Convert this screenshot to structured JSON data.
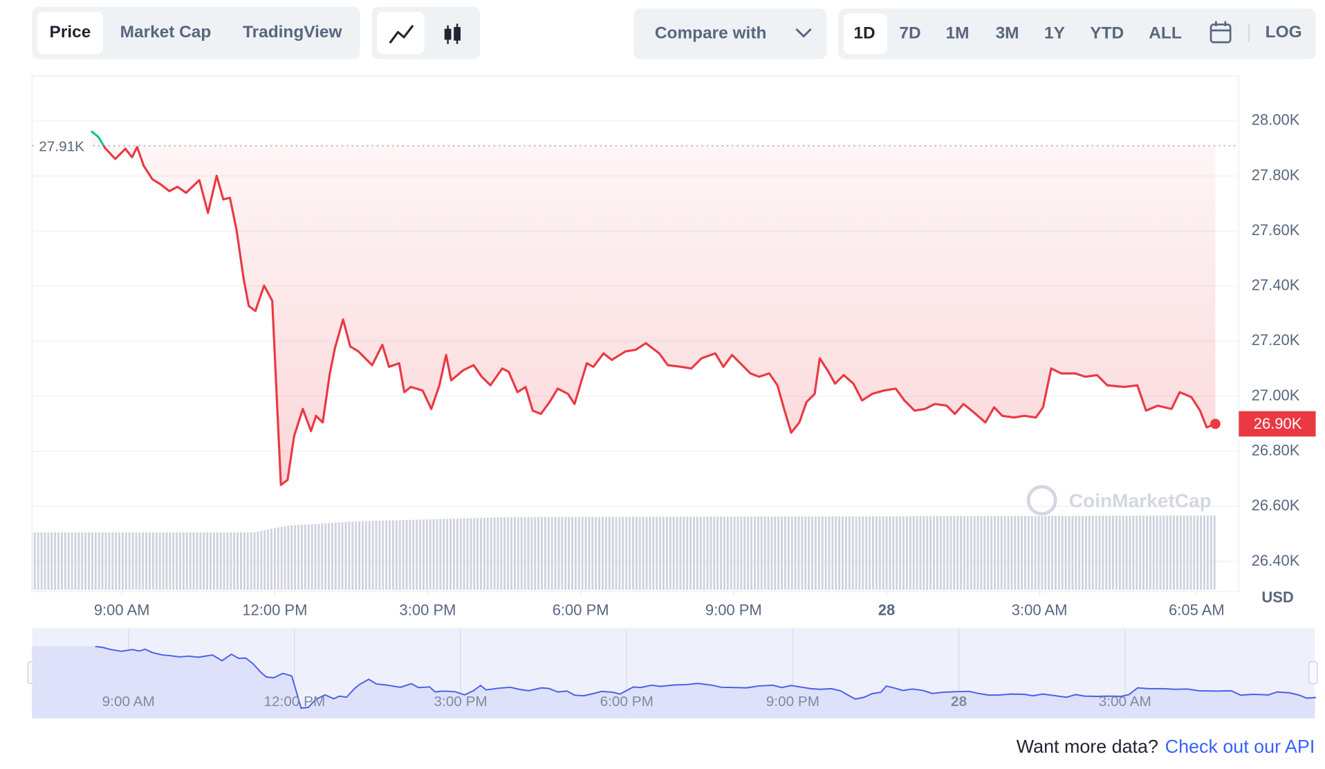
{
  "toolbar": {
    "tabs": [
      "Price",
      "Market Cap",
      "TradingView"
    ],
    "compare": "Compare with",
    "ranges": [
      "1D",
      "7D",
      "1M",
      "3M",
      "1Y",
      "YTD",
      "ALL"
    ],
    "log": "LOG"
  },
  "chart_data": {
    "type": "line",
    "color": "#ea3943",
    "up_color": "#16c784",
    "x": [
      8.4,
      8.54,
      8.67,
      8.87,
      9.07,
      9.2,
      9.3,
      9.43,
      9.6,
      9.76,
      9.93,
      10.09,
      10.26,
      10.52,
      10.69,
      10.86,
      10.99,
      11.12,
      11.25,
      11.39,
      11.49,
      11.62,
      11.79,
      11.95,
      12.12,
      12.25,
      12.38,
      12.55,
      12.71,
      12.81,
      12.94,
      13.08,
      13.18,
      13.34,
      13.48,
      13.64,
      13.91,
      14.11,
      14.24,
      14.44,
      14.54,
      14.67,
      14.9,
      15.07,
      15.23,
      15.36,
      15.46,
      15.7,
      15.9,
      16.06,
      16.23,
      16.46,
      16.59,
      16.76,
      16.92,
      17.06,
      17.22,
      17.39,
      17.55,
      17.75,
      17.88,
      18.12,
      18.25,
      18.45,
      18.61,
      18.88,
      19.08,
      19.28,
      19.54,
      19.71,
      19.97,
      20.17,
      20.37,
      20.64,
      20.8,
      20.97,
      21.17,
      21.33,
      21.5,
      21.7,
      21.86,
      22.0,
      22.13,
      22.29,
      22.43,
      22.59,
      22.69,
      22.86,
      22.99,
      23.16,
      23.35,
      23.52,
      23.72,
      23.95,
      24.18,
      24.35,
      24.55,
      24.75,
      24.95,
      25.18,
      25.34,
      25.51,
      25.71,
      25.94,
      26.11,
      26.27,
      26.5,
      26.7,
      26.93,
      27.07,
      27.23,
      27.43,
      27.7,
      27.9,
      28.13,
      28.33,
      28.66,
      28.92,
      29.09,
      29.32,
      29.59,
      29.75,
      29.98,
      30.15,
      30.28,
      30.45
    ],
    "values": [
      27963,
      27942,
      27902,
      27862,
      27899,
      27868,
      27905,
      27837,
      27788,
      27770,
      27745,
      27761,
      27739,
      27785,
      27666,
      27801,
      27715,
      27721,
      27604,
      27426,
      27328,
      27310,
      27402,
      27347,
      26678,
      26696,
      26856,
      26954,
      26874,
      26929,
      26905,
      27083,
      27175,
      27279,
      27181,
      27163,
      27113,
      27187,
      27107,
      27120,
      27015,
      27034,
      27021,
      26954,
      27040,
      27150,
      27058,
      27095,
      27113,
      27071,
      27040,
      27101,
      27089,
      27015,
      27034,
      26948,
      26936,
      26979,
      27028,
      27009,
      26972,
      27120,
      27107,
      27156,
      27132,
      27163,
      27169,
      27193,
      27156,
      27113,
      27107,
      27101,
      27138,
      27156,
      27107,
      27150,
      27113,
      27083,
      27071,
      27083,
      27040,
      26948,
      26868,
      26905,
      26979,
      27009,
      27138,
      27089,
      27046,
      27077,
      27046,
      26985,
      27009,
      27021,
      27028,
      26985,
      26948,
      26954,
      26972,
      26966,
      26936,
      26972,
      26942,
      26905,
      26960,
      26929,
      26923,
      26929,
      26923,
      26960,
      27101,
      27083,
      27083,
      27071,
      27077,
      27040,
      27034,
      27040,
      26948,
      26966,
      26954,
      27015,
      26997,
      26948,
      26887,
      26900
    ],
    "xlim": [
      7.24,
      30.91
    ],
    "ylim": [
      26291,
      28163
    ],
    "xticks": [
      {
        "value": 9,
        "label": "9:00 AM"
      },
      {
        "value": 12,
        "label": "12:00 PM"
      },
      {
        "value": 15,
        "label": "3:00 PM"
      },
      {
        "value": 18,
        "label": "6:00 PM"
      },
      {
        "value": 21,
        "label": "9:00 PM"
      },
      {
        "value": 24,
        "label": "28"
      },
      {
        "value": 27,
        "label": "3:00 AM"
      },
      {
        "value": 30.083,
        "label": "6:05 AM"
      }
    ],
    "yticks": [
      {
        "value": 26400,
        "label": "26.40K"
      },
      {
        "value": 26600,
        "label": "26.60K"
      },
      {
        "value": 26800,
        "label": "26.80K"
      },
      {
        "value": 27000,
        "label": "27.00K"
      },
      {
        "value": 27200,
        "label": "27.20K"
      },
      {
        "value": 27400,
        "label": "27.40K"
      },
      {
        "value": 27600,
        "label": "27.60K"
      },
      {
        "value": 27800,
        "label": "27.80K"
      },
      {
        "value": 28000,
        "label": "28.00K"
      }
    ],
    "grid": true,
    "y_unit": "USD",
    "reference": {
      "value": 27910,
      "label": "27.91K"
    },
    "last": {
      "value": 26900,
      "label": "26.90K"
    },
    "watermark": "CoinMarketCap"
  },
  "navigator": {
    "color": "#4a5ee8",
    "xlim": [
      7.26,
      30.43
    ],
    "ylim": [
      26467,
      28315
    ],
    "xticks": [
      {
        "value": 9,
        "label": "9:00 AM"
      },
      {
        "value": 12,
        "label": "12:00 PM"
      },
      {
        "value": 15,
        "label": "3:00 PM"
      },
      {
        "value": 18,
        "label": "6:00 PM"
      },
      {
        "value": 21,
        "label": "9:00 PM"
      },
      {
        "value": 24,
        "label": "28"
      },
      {
        "value": 27,
        "label": "3:00 AM"
      }
    ]
  },
  "footer": {
    "text": "Want more data?",
    "link": "Check out our API"
  }
}
